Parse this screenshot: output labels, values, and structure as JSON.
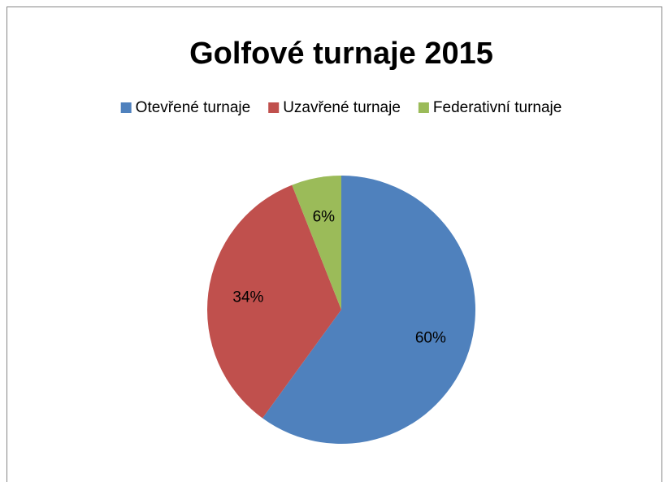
{
  "chart_data": {
    "type": "pie",
    "title": "Golfové turnaje 2015",
    "categories": [
      "Otevřené turnaje",
      "Uzavřené turnaje",
      "Federativní turnaje"
    ],
    "values": [
      60,
      34,
      6
    ],
    "value_labels": [
      "60%",
      "34%",
      "6%"
    ],
    "colors": [
      "#4f81bd",
      "#c0504d",
      "#9bbb59"
    ],
    "legend": "top"
  }
}
